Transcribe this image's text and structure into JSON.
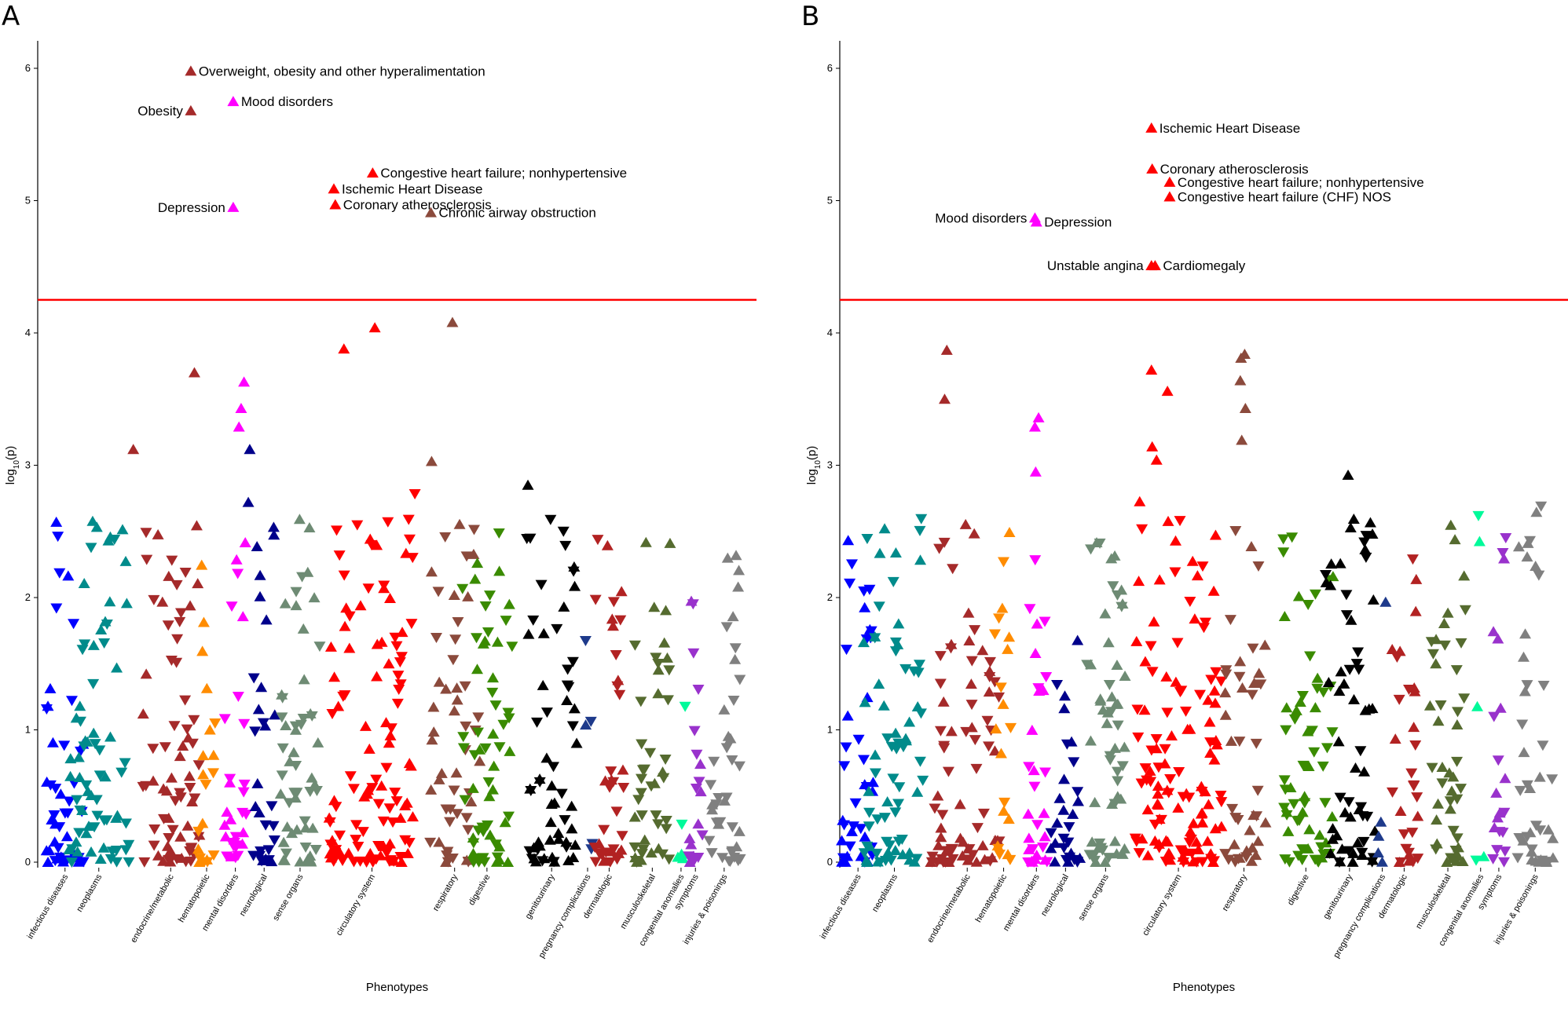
{
  "chart_data": [
    {
      "panel": "A",
      "type": "scatter",
      "xlabel": "Phenotypes",
      "ylabel_prefix": "log",
      "ylabel_sub": "10",
      "ylabel_suffix": "(p)",
      "ylim": [
        0,
        6.3
      ],
      "yticks": [
        0,
        1,
        2,
        3,
        4,
        5,
        6
      ],
      "threshold": 4.25,
      "threshold_color": "#ff0000",
      "grid": false,
      "categories": [
        "infectious diseases",
        "neoplasms",
        "endocrine/metabolic",
        "hematopoietic",
        "mental disorders",
        "neurological",
        "sense organs",
        "circulatory system",
        "respiratory",
        "digestive",
        "genitourinary",
        "pregnancy complications",
        "dermatologic",
        "musculoskeletal",
        "congenital anomalies",
        "symptoms",
        "injuries & poisonings"
      ],
      "category_colors": [
        "#0000ff",
        "#008b8b",
        "#a52a2a",
        "#ff8c00",
        "#ff00ff",
        "#00008b",
        "#6e8b74",
        "#ff0000",
        "#8b4a3c",
        "#3a8b00",
        "#000000",
        "#1e3a8b",
        "#b22222",
        "#556b2f",
        "#00fa9a",
        "#9932cc",
        "#808080"
      ],
      "category_x_percent": [
        3.8,
        8.5,
        18.5,
        23.5,
        27.5,
        31.5,
        36.5,
        46.5,
        58.0,
        62.5,
        71.5,
        76.5,
        79.5,
        85.5,
        89.5,
        91.5,
        95.5
      ],
      "category_width": [
        5.5,
        8.5,
        8.0,
        2.5,
        3.0,
        3.0,
        5.5,
        12.0,
        7.0,
        7.0,
        7.0,
        1.5,
        4.0,
        5.0,
        1.5,
        2.0,
        4.5
      ],
      "category_counts": [
        45,
        70,
        70,
        20,
        30,
        30,
        55,
        110,
        50,
        60,
        60,
        5,
        35,
        45,
        5,
        20,
        40
      ],
      "seed": 11,
      "points": [
        {
          "cat": 2,
          "xp": 21.3,
          "y": 5.98,
          "dir": "up",
          "label": "Overweight, obesity and other hyperalimentation",
          "side": "right"
        },
        {
          "cat": 2,
          "xp": 21.3,
          "y": 5.68,
          "dir": "up",
          "label": "Obesity",
          "side": "left"
        },
        {
          "cat": 4,
          "xp": 27.2,
          "y": 5.75,
          "dir": "up",
          "label": "Mood disorders",
          "side": "right"
        },
        {
          "cat": 4,
          "xp": 27.2,
          "y": 4.95,
          "dir": "up",
          "label": "Depression",
          "side": "left"
        },
        {
          "cat": 7,
          "xp": 46.6,
          "y": 5.21,
          "dir": "up",
          "label": "Congestive heart failure; nonhypertensive",
          "side": "right"
        },
        {
          "cat": 7,
          "xp": 41.2,
          "y": 5.09,
          "dir": "up",
          "label": "Ischemic Heart Disease",
          "side": "right"
        },
        {
          "cat": 7,
          "xp": 41.4,
          "y": 4.97,
          "dir": "up",
          "label": "Coronary atherosclerosis",
          "side": "right"
        },
        {
          "cat": 8,
          "xp": 54.7,
          "y": 4.91,
          "dir": "up",
          "label": "Chronic airway obstruction",
          "side": "right"
        },
        {
          "cat": 2,
          "xp": 21.8,
          "y": 3.7,
          "dir": "up"
        },
        {
          "cat": 2,
          "xp": 13.3,
          "y": 3.12,
          "dir": "up"
        },
        {
          "cat": 4,
          "xp": 28.7,
          "y": 3.63,
          "dir": "up"
        },
        {
          "cat": 4,
          "xp": 28.3,
          "y": 3.43,
          "dir": "up"
        },
        {
          "cat": 4,
          "xp": 28.0,
          "y": 3.29,
          "dir": "up"
        },
        {
          "cat": 5,
          "xp": 29.5,
          "y": 3.12,
          "dir": "up"
        },
        {
          "cat": 5,
          "xp": 29.3,
          "y": 2.72,
          "dir": "up"
        },
        {
          "cat": 7,
          "xp": 42.6,
          "y": 3.88,
          "dir": "up"
        },
        {
          "cat": 7,
          "xp": 46.9,
          "y": 4.04,
          "dir": "up"
        },
        {
          "cat": 8,
          "xp": 57.7,
          "y": 4.08,
          "dir": "up"
        },
        {
          "cat": 8,
          "xp": 54.8,
          "y": 3.03,
          "dir": "up"
        },
        {
          "cat": 10,
          "xp": 68.2,
          "y": 2.85,
          "dir": "up"
        }
      ]
    },
    {
      "panel": "B",
      "type": "scatter",
      "xlabel": "Phenotypes",
      "ylabel_prefix": "log",
      "ylabel_sub": "10",
      "ylabel_suffix": "(p)",
      "ylim": [
        0,
        6.3
      ],
      "yticks": [
        0,
        1,
        2,
        3,
        4,
        5,
        6
      ],
      "threshold": 4.25,
      "threshold_color": "#ff0000",
      "grid": false,
      "categories": [
        "infectious diseases",
        "neoplasms",
        "endocrine/metabolic",
        "hematopoietic",
        "mental disorders",
        "neurological",
        "sense organs",
        "circulatory system",
        "respiratory",
        "digestive",
        "genitourinary",
        "pregnancy complications",
        "dermatologic",
        "musculoskeletal",
        "congenital anomalies",
        "symptoms",
        "injuries & poisonings"
      ],
      "category_colors": [
        "#0000ff",
        "#008b8b",
        "#a52a2a",
        "#ff8c00",
        "#ff00ff",
        "#00008b",
        "#6e8b74",
        "#ff0000",
        "#8b4a3c",
        "#3a8b00",
        "#000000",
        "#1e3a8b",
        "#b22222",
        "#556b2f",
        "#00fa9a",
        "#9932cc",
        "#808080"
      ],
      "category_x_percent": [
        2.5,
        7.5,
        17.5,
        22.5,
        27.0,
        31.0,
        36.5,
        46.5,
        55.5,
        64.0,
        70.0,
        74.5,
        77.5,
        83.5,
        88.0,
        90.5,
        95.5
      ],
      "category_width": [
        4.5,
        8.5,
        10.0,
        2.5,
        3.0,
        4.0,
        5.5,
        12.0,
        6.0,
        7.5,
        7.0,
        1.5,
        4.0,
        5.0,
        1.5,
        2.0,
        5.0
      ],
      "category_counts": [
        40,
        70,
        75,
        20,
        30,
        30,
        55,
        120,
        40,
        60,
        60,
        5,
        30,
        45,
        5,
        20,
        40
      ],
      "seed": 29,
      "points": [
        {
          "cat": 7,
          "xp": 42.8,
          "y": 5.55,
          "dir": "up",
          "label": "Ischemic Heart Disease",
          "side": "right"
        },
        {
          "cat": 7,
          "xp": 42.9,
          "y": 5.24,
          "dir": "up",
          "label": "Coronary atherosclerosis",
          "side": "right"
        },
        {
          "cat": 7,
          "xp": 45.3,
          "y": 5.14,
          "dir": "up",
          "label": "Congestive heart failure; nonhypertensive",
          "side": "right"
        },
        {
          "cat": 7,
          "xp": 45.3,
          "y": 5.03,
          "dir": "up",
          "label": "Congestive heart failure (CHF) NOS",
          "side": "right"
        },
        {
          "cat": 4,
          "xp": 26.8,
          "y": 4.87,
          "dir": "up",
          "label": "Mood disorders",
          "side": "left"
        },
        {
          "cat": 4,
          "xp": 27.0,
          "y": 4.84,
          "dir": "up",
          "label": "Depression",
          "side": "right"
        },
        {
          "cat": 7,
          "xp": 42.8,
          "y": 4.51,
          "dir": "up",
          "label": "Unstable angina",
          "side": "left"
        },
        {
          "cat": 7,
          "xp": 43.3,
          "y": 4.51,
          "dir": "up",
          "label": "Cardiomegaly",
          "side": "right"
        },
        {
          "cat": 2,
          "xp": 14.7,
          "y": 3.87,
          "dir": "up"
        },
        {
          "cat": 2,
          "xp": 14.4,
          "y": 3.5,
          "dir": "up"
        },
        {
          "cat": 4,
          "xp": 27.3,
          "y": 3.36,
          "dir": "up"
        },
        {
          "cat": 4,
          "xp": 26.8,
          "y": 3.29,
          "dir": "up"
        },
        {
          "cat": 4,
          "xp": 26.9,
          "y": 2.95,
          "dir": "up"
        },
        {
          "cat": 7,
          "xp": 42.8,
          "y": 3.72,
          "dir": "up"
        },
        {
          "cat": 7,
          "xp": 45.0,
          "y": 3.56,
          "dir": "up"
        },
        {
          "cat": 7,
          "xp": 42.9,
          "y": 3.14,
          "dir": "up"
        },
        {
          "cat": 7,
          "xp": 43.5,
          "y": 3.04,
          "dir": "up"
        },
        {
          "cat": 8,
          "xp": 55.6,
          "y": 3.84,
          "dir": "up"
        },
        {
          "cat": 8,
          "xp": 55.1,
          "y": 3.81,
          "dir": "up"
        },
        {
          "cat": 8,
          "xp": 55.0,
          "y": 3.64,
          "dir": "up"
        },
        {
          "cat": 8,
          "xp": 55.7,
          "y": 3.43,
          "dir": "up"
        },
        {
          "cat": 8,
          "xp": 55.2,
          "y": 3.19,
          "dir": "up"
        },
        {
          "cat": 16,
          "xp": 96.3,
          "y": 2.69,
          "dir": "down"
        }
      ]
    }
  ]
}
